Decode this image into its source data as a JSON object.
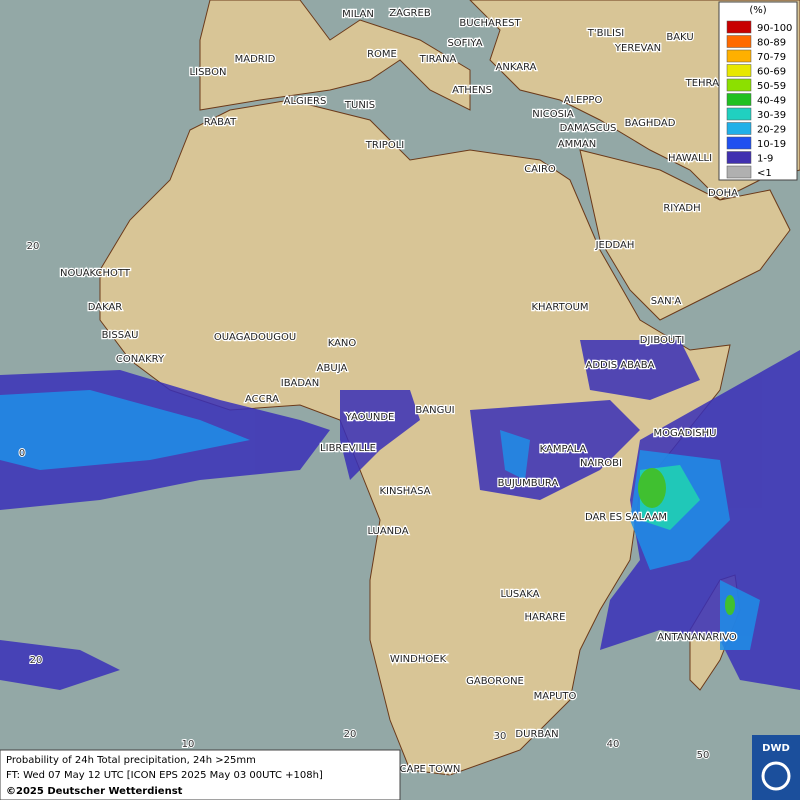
{
  "legend": {
    "unit": "(%)",
    "items": [
      {
        "label": "90-100",
        "color": "#c80000"
      },
      {
        "label": "80-89",
        "color": "#ff6a00"
      },
      {
        "label": "70-79",
        "color": "#ffb000"
      },
      {
        "label": "60-69",
        "color": "#e8e800"
      },
      {
        "label": "50-59",
        "color": "#8ce000"
      },
      {
        "label": "40-49",
        "color": "#20c020"
      },
      {
        "label": "30-39",
        "color": "#20d0c0"
      },
      {
        "label": "20-29",
        "color": "#20b0e8"
      },
      {
        "label": "10-19",
        "color": "#2050f0"
      },
      {
        "label": "1-9",
        "color": "#4030b0"
      },
      {
        "label": "<1",
        "color": "#b0b0b0"
      }
    ]
  },
  "cities": [
    "MILAN",
    "ZAGREB",
    "BUCHAREST",
    "SOFIYA",
    "ROME",
    "TIRANA",
    "ANKARA",
    "T'BILISI",
    "BAKU",
    "YEREVAN",
    "TEHRAN",
    "MADRID",
    "LISBON",
    "ALGIERS",
    "TUNIS",
    "ATHENS",
    "ALEPPO",
    "NICOSIA",
    "BAGHDAD",
    "DAMASCUS",
    "AMMAN",
    "HAWALLI",
    "RABAT",
    "TRIPOLI",
    "CAIRO",
    "DOHA",
    "RIYADH",
    "JEDDAH",
    "NOUAKCHOTT",
    "DAKAR",
    "SAN'A",
    "KHARTOUM",
    "BISSAU",
    "DJIBOUTI",
    "OUAGADOUGOU",
    "KANO",
    "CONAKRY",
    "ABUJA",
    "ADDIS ABABA",
    "IBADAN",
    "ACCRA",
    "BANGUI",
    "YAOUNDE",
    "MOGADISHU",
    "LIBREVILLE",
    "KAMPALA",
    "NAIROBI",
    "BUJUMBURA",
    "KINSHASA",
    "DAR ES SALAAM",
    "LUANDA",
    "LUSAKA",
    "HARARE",
    "ANTANANARIVO",
    "WINDHOEK",
    "GABORONE",
    "MAPUTO",
    "DURBAN",
    "CAPE TOWN"
  ],
  "grid_labels": [
    "20",
    "0",
    "20",
    "10",
    "20",
    "30",
    "40",
    "50"
  ],
  "footer": {
    "line1": "Probability of 24h Total precipitation, 24h >25mm",
    "line2": "FT: Wed 07 May 12 UTC [ICON EPS 2025 May 03 00UTC +108h]",
    "line3": "©2025 Deutscher Wetterdienst"
  },
  "logo": "DWD"
}
